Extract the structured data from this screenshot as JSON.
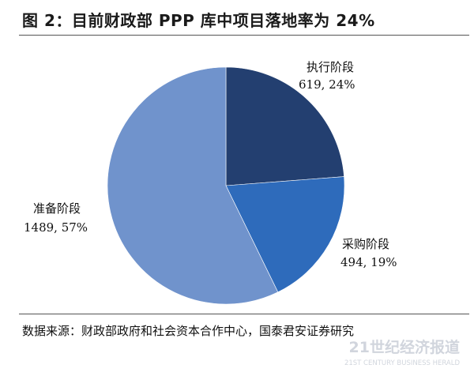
{
  "title": "图 2：目前财政部 PPP 库中项目落地率为 24%",
  "source_note": "数据来源：财政部政府和社会资本合作中心，国泰君安证券研究",
  "watermark": {
    "line1": "21世纪经济报道",
    "line2": "21ST CENTURY BUSINESS HERALD"
  },
  "chart_data": {
    "type": "pie",
    "title": "",
    "slices": [
      {
        "label": "执行阶段",
        "value": 619,
        "percent": "24%",
        "value_text": "619, 24%",
        "color": "#233f70"
      },
      {
        "label": "采购阶段",
        "value": 494,
        "percent": "19%",
        "value_text": "494, 19%",
        "color": "#2e6bbb"
      },
      {
        "label": "准备阶段",
        "value": 1489,
        "percent": "57%",
        "value_text": "1489, 57%",
        "color": "#7093cc"
      }
    ],
    "start_angle": "12 o'clock, clockwise",
    "legend": "none (labels beside slices)"
  }
}
